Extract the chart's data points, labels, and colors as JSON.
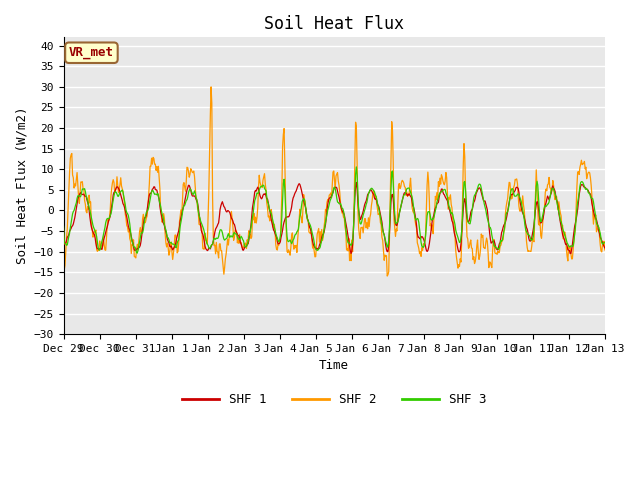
{
  "title": "Soil Heat Flux",
  "xlabel": "Time",
  "ylabel": "Soil Heat Flux (W/m2)",
  "ylim": [
    -30,
    42
  ],
  "yticks": [
    -30,
    -25,
    -20,
    -15,
    -10,
    -5,
    0,
    5,
    10,
    15,
    20,
    25,
    30,
    35,
    40
  ],
  "series_colors": [
    "#cc0000",
    "#ff9900",
    "#33cc00"
  ],
  "series_labels": [
    "SHF 1",
    "SHF 2",
    "SHF 3"
  ],
  "annotation_text": "VR_met",
  "annotation_bg": "#ffffcc",
  "annotation_border": "#996633",
  "annotation_text_color": "#990000",
  "plot_bg": "#e8e8e8",
  "grid_color": "#ffffff",
  "title_fontsize": 12,
  "axis_fontsize": 9,
  "tick_fontsize": 8,
  "tick_labels": [
    "Dec 29",
    "Dec 30",
    "Dec 31",
    "Jan 1",
    "Jan 2",
    "Jan 3",
    "Jan 4",
    "Jan 5",
    "Jan 6",
    "Jan 7",
    "Jan 8",
    "Jan 9",
    "Jan 10",
    "Jan 11",
    "Jan 12",
    "Jan 13"
  ]
}
